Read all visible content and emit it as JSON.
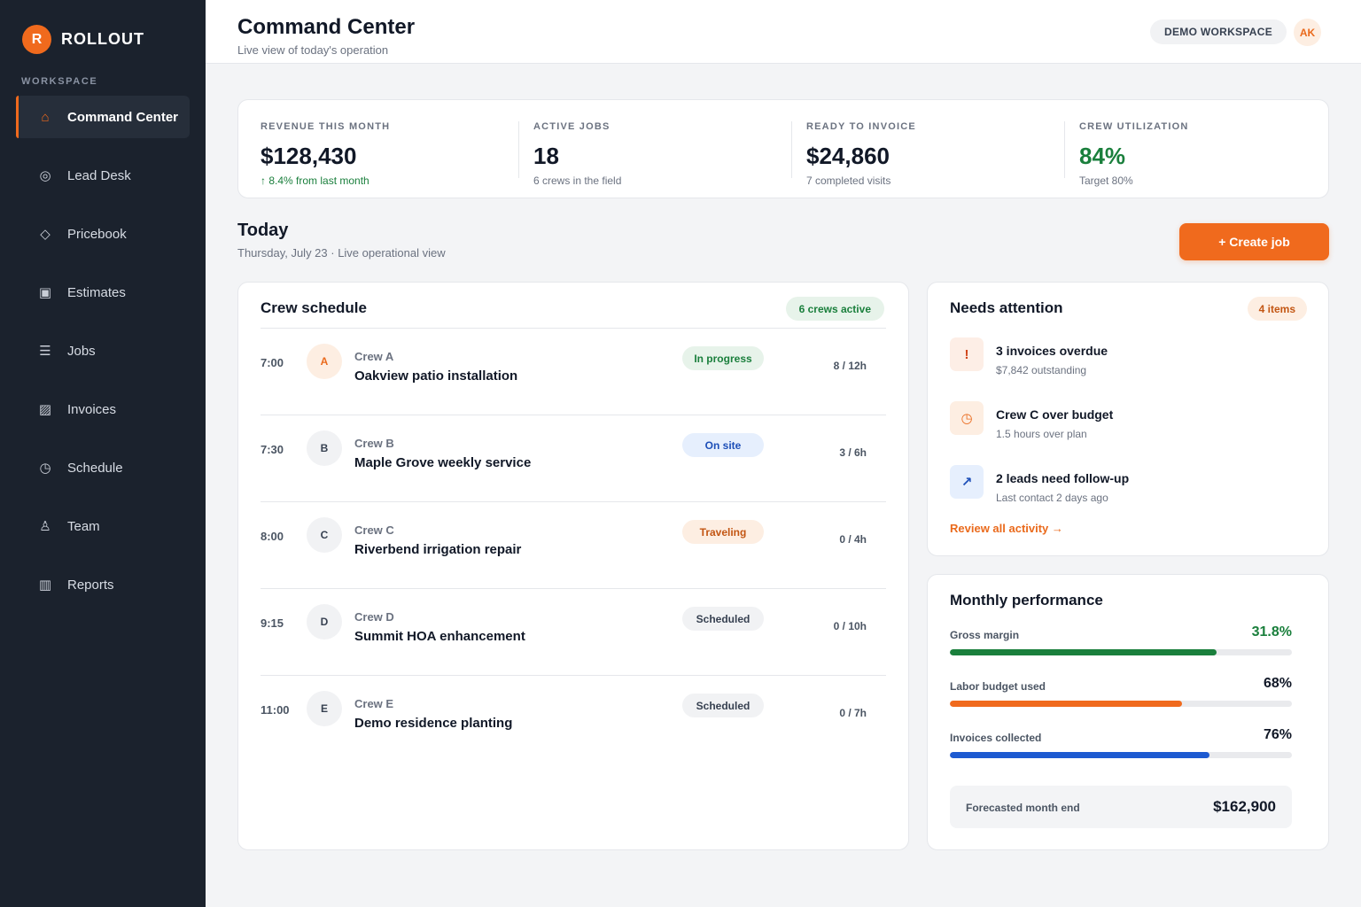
{
  "brand": {
    "mark": "R",
    "name": "ROLLOUT"
  },
  "sidebar": {
    "section_label": "WORKSPACE",
    "items": [
      {
        "label": "Command Center",
        "icon": "home-icon",
        "glyph": "⌂",
        "active": true
      },
      {
        "label": "Lead Desk",
        "icon": "target-icon",
        "glyph": "◎",
        "active": false
      },
      {
        "label": "Pricebook",
        "icon": "diamond-icon",
        "glyph": "◇",
        "active": false
      },
      {
        "label": "Estimates",
        "icon": "estimate-icon",
        "glyph": "▣",
        "active": false
      },
      {
        "label": "Jobs",
        "icon": "list-icon",
        "glyph": "☰",
        "active": false
      },
      {
        "label": "Invoices",
        "icon": "invoice-icon",
        "glyph": "▨",
        "active": false
      },
      {
        "label": "Schedule",
        "icon": "clock-icon",
        "glyph": "◷",
        "active": false
      },
      {
        "label": "Team",
        "icon": "person-icon",
        "glyph": "♙",
        "active": false
      },
      {
        "label": "Reports",
        "icon": "bars-icon",
        "glyph": "▥",
        "active": false
      }
    ]
  },
  "header": {
    "title": "Command Center",
    "subtitle": "Live view of today's operation",
    "workspace": "DEMO WORKSPACE",
    "user_initials": "AK"
  },
  "kpis": [
    {
      "label": "REVENUE THIS MONTH",
      "value": "$128,430",
      "sub": "↑ 8.4% from last month",
      "sub_green": true,
      "value_green": false
    },
    {
      "label": "ACTIVE JOBS",
      "value": "18",
      "sub": "6 crews in the field",
      "sub_green": false,
      "value_green": false
    },
    {
      "label": "READY TO INVOICE",
      "value": "$24,860",
      "sub": "7 completed visits",
      "sub_green": false,
      "value_green": false
    },
    {
      "label": "CREW UTILIZATION",
      "value": "84%",
      "sub": "Target 80%",
      "sub_green": false,
      "value_green": true
    }
  ],
  "today": {
    "title": "Today",
    "subtitle": "Thursday, July 23 · Live operational view",
    "create_label": "+ Create job"
  },
  "crew_schedule": {
    "title": "Crew schedule",
    "badge": "6 crews active",
    "rows": [
      {
        "time": "7:00",
        "initial": "A",
        "highlight": true,
        "crew": "Crew A",
        "job": "Oakview patio installation",
        "status": "In progress",
        "status_kind": "progress",
        "hours": "8 / 12h"
      },
      {
        "time": "7:30",
        "initial": "B",
        "highlight": false,
        "crew": "Crew B",
        "job": "Maple Grove weekly service",
        "status": "On site",
        "status_kind": "onsite",
        "hours": "3 / 6h"
      },
      {
        "time": "8:00",
        "initial": "C",
        "highlight": false,
        "crew": "Crew C",
        "job": "Riverbend irrigation repair",
        "status": "Traveling",
        "status_kind": "travel",
        "hours": "0 / 4h"
      },
      {
        "time": "9:15",
        "initial": "D",
        "highlight": false,
        "crew": "Crew D",
        "job": "Summit HOA enhancement",
        "status": "Scheduled",
        "status_kind": "sched",
        "hours": "0 / 10h"
      },
      {
        "time": "11:00",
        "initial": "E",
        "highlight": false,
        "crew": "Crew E",
        "job": "Demo residence planting",
        "status": "Scheduled",
        "status_kind": "sched",
        "hours": "0 / 7h"
      }
    ]
  },
  "needs_attention": {
    "title": "Needs attention",
    "badge": "4 items",
    "items": [
      {
        "icon": "alert-icon",
        "glyph": "!",
        "kind": "red",
        "title": "3 invoices overdue",
        "sub": "$7,842 outstanding"
      },
      {
        "icon": "clock-icon",
        "glyph": "◷",
        "kind": "orange",
        "title": "Crew C over budget",
        "sub": "1.5 hours over plan"
      },
      {
        "icon": "trend-up-icon",
        "glyph": "↗",
        "kind": "blue",
        "title": "2 leads need follow-up",
        "sub": "Last contact 2 days ago"
      }
    ],
    "link": "Review all activity →"
  },
  "monthly_performance": {
    "title": "Monthly performance",
    "metrics": [
      {
        "label": "Gross margin",
        "value": "31.8%",
        "fraction": 0.78,
        "color": "#1a7f3c",
        "value_green": true
      },
      {
        "label": "Labor budget used",
        "value": "68%",
        "fraction": 0.68,
        "color": "#f06a1d",
        "value_green": false
      },
      {
        "label": "Invoices collected",
        "value": "76%",
        "fraction": 0.76,
        "color": "#1d5ad1",
        "value_green": false
      }
    ],
    "forecast_label": "Forecasted month end",
    "forecast_value": "$162,900"
  }
}
